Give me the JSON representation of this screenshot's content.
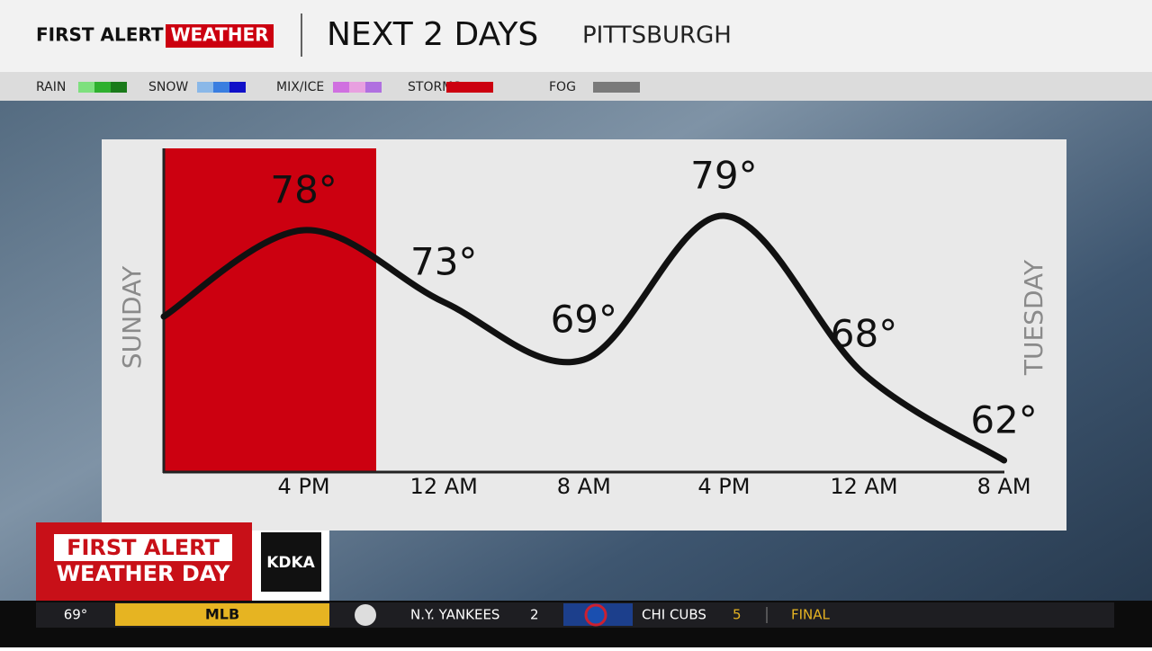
{
  "header": {
    "brand_a": "FIRST ALERT",
    "brand_b": "WEATHER",
    "title": "NEXT 2 DAYS",
    "location": "PITTSBURGH"
  },
  "legend": [
    {
      "label": "RAIN",
      "colors": [
        "#7ee07e",
        "#2fb02f",
        "#1a7a1a"
      ]
    },
    {
      "label": "SNOW",
      "colors": [
        "#8ab8e8",
        "#3a7ee0",
        "#1010c8"
      ]
    },
    {
      "label": "MIX/ICE",
      "colors": [
        "#d070e0",
        "#e8a0e0",
        "#b070e0"
      ]
    },
    {
      "label": "STORMS",
      "colors": [
        "#cc0010"
      ]
    },
    {
      "label": "FOG",
      "colors": [
        "#7a7a7a"
      ]
    }
  ],
  "chart_data": {
    "type": "line",
    "categories": [
      null,
      "4 PM",
      "12 AM",
      "8 AM",
      "4 PM",
      "12 AM",
      "8 AM"
    ],
    "values": [
      72,
      78,
      73,
      69,
      79,
      68,
      62
    ],
    "value_labels": [
      null,
      "78°",
      "73°",
      "69°",
      "79°",
      "68°",
      "62°"
    ],
    "color": "#111111",
    "day_start": "SUNDAY",
    "day_end": "TUESDAY"
  },
  "banner": {
    "line1": "FIRST ALERT",
    "line2": "WEATHER DAY",
    "station": "KDKA"
  },
  "ticker": {
    "temp": "69°",
    "league": "MLB",
    "team1": "N.Y. YANKEES",
    "score1": "2",
    "team2": "CHI CUBS",
    "score2": "5",
    "status": "FINAL"
  }
}
